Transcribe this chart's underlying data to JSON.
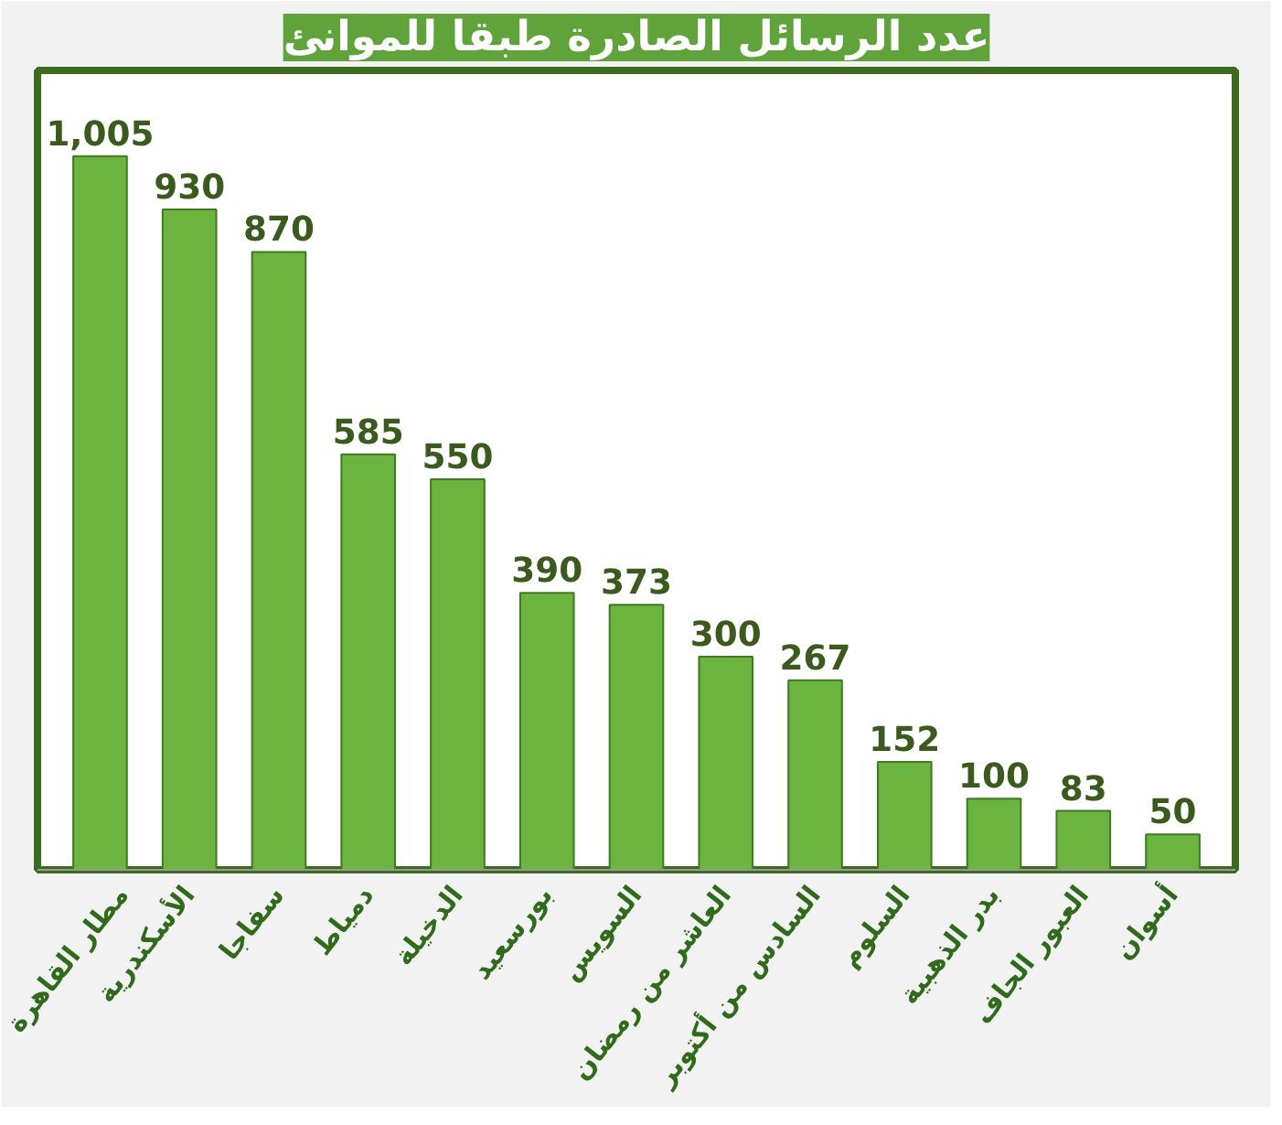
{
  "chart_data": {
    "type": "bar",
    "title": "عدد الرسائل الصادرة طبقا للموانئ",
    "categories": [
      "مطار القاهرة",
      "الأسكندرية",
      "سفاجا",
      "دمياط",
      "الدخيلة",
      "بورسعيد",
      "السويس",
      "العاشر من رمضان",
      "السادس من أكتوبر",
      "السلوم",
      "بدر الذهبية",
      "العبور الجاف",
      "أسوان"
    ],
    "values": [
      1005,
      930,
      870,
      585,
      550,
      390,
      373,
      300,
      267,
      152,
      100,
      83,
      50
    ],
    "value_labels": [
      "1,005",
      "930",
      "870",
      "585",
      "550",
      "390",
      "373",
      "300",
      "267",
      "152",
      "100",
      "83",
      "50"
    ],
    "color": "#6ab43f"
  }
}
